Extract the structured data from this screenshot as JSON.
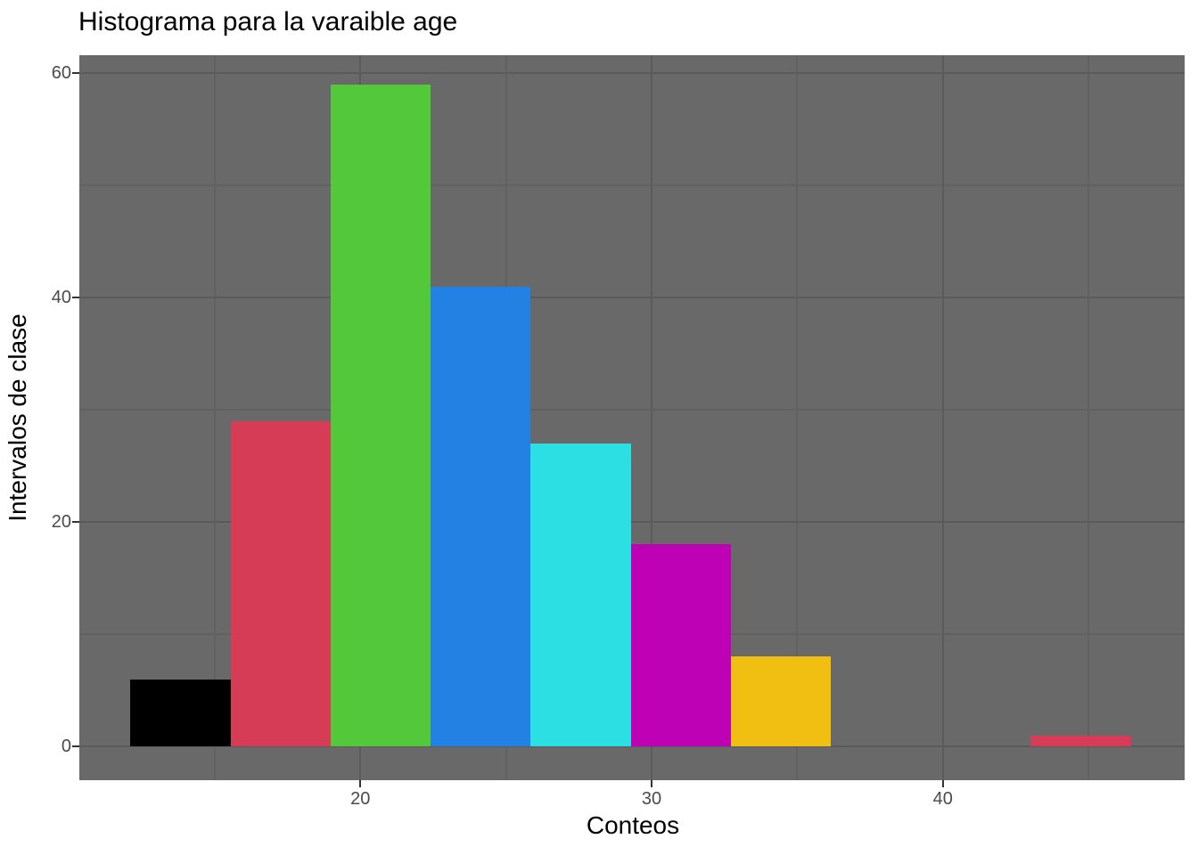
{
  "chart_data": {
    "type": "bar",
    "subtype": "histogram",
    "title": "Histograma para la varaible age",
    "xlabel": "Conteos",
    "ylabel": "Intervalos de clase",
    "xlim": [
      10.35,
      48.3
    ],
    "ylim": [
      -3.0,
      61.6
    ],
    "x_major_ticks": [
      20,
      30,
      40
    ],
    "x_minor_ticks": [
      15,
      25,
      35,
      45
    ],
    "y_major_ticks": [
      0,
      20,
      40,
      60
    ],
    "y_minor_ticks": [
      10,
      30,
      50
    ],
    "grid": true,
    "legend": false,
    "bins": [
      {
        "x0": 12.1,
        "x1": 15.54,
        "count": 6,
        "color": "#000000"
      },
      {
        "x0": 15.54,
        "x1": 18.97,
        "count": 29,
        "color": "#D63C56"
      },
      {
        "x0": 18.97,
        "x1": 22.41,
        "count": 59,
        "color": "#53C83B"
      },
      {
        "x0": 22.41,
        "x1": 25.84,
        "count": 41,
        "color": "#2281E2"
      },
      {
        "x0": 25.84,
        "x1": 29.28,
        "count": 27,
        "color": "#2BDFE2"
      },
      {
        "x0": 29.28,
        "x1": 32.71,
        "count": 18,
        "color": "#BF01B5"
      },
      {
        "x0": 32.71,
        "x1": 36.15,
        "count": 8,
        "color": "#F1BF12"
      },
      {
        "x0": 36.15,
        "x1": 39.58,
        "count": 0,
        "color": null
      },
      {
        "x0": 39.58,
        "x1": 43.02,
        "count": 0,
        "color": null
      },
      {
        "x0": 43.02,
        "x1": 46.45,
        "count": 1,
        "color": "#D63C56"
      }
    ],
    "colors": {
      "panel_bg": "#696969",
      "grid_major": "#5B5B5B",
      "grid_minor": "#616161",
      "tick_mark": "#333333",
      "tick_text": "#4A4A4A",
      "title_text": "#000000"
    }
  }
}
